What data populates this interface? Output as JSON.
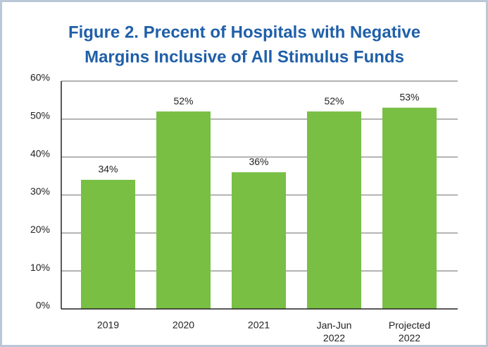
{
  "chart_data": {
    "type": "bar",
    "title": [
      "Figure 2. Precent of Hospitals with Negative",
      "Margins Inclusive of All Stimulus Funds"
    ],
    "categories": [
      "2019",
      "2020",
      "2021",
      "Jan-Jun 2022",
      "Projected 2022"
    ],
    "values": [
      34,
      52,
      36,
      52,
      53
    ],
    "value_labels": [
      "34%",
      "52%",
      "36%",
      "52%",
      "53%"
    ],
    "color": "#78bf44",
    "ylim": [
      0,
      60
    ],
    "yticks": [
      {
        "value": 0,
        "label": "0%"
      },
      {
        "value": 10,
        "label": "10%"
      },
      {
        "value": 20,
        "label": "20%"
      },
      {
        "value": 30,
        "label": "30%"
      },
      {
        "value": 40,
        "label": "40%"
      },
      {
        "value": 50,
        "label": "50%"
      },
      {
        "value": 60,
        "label": "60%"
      }
    ],
    "grid": true
  }
}
